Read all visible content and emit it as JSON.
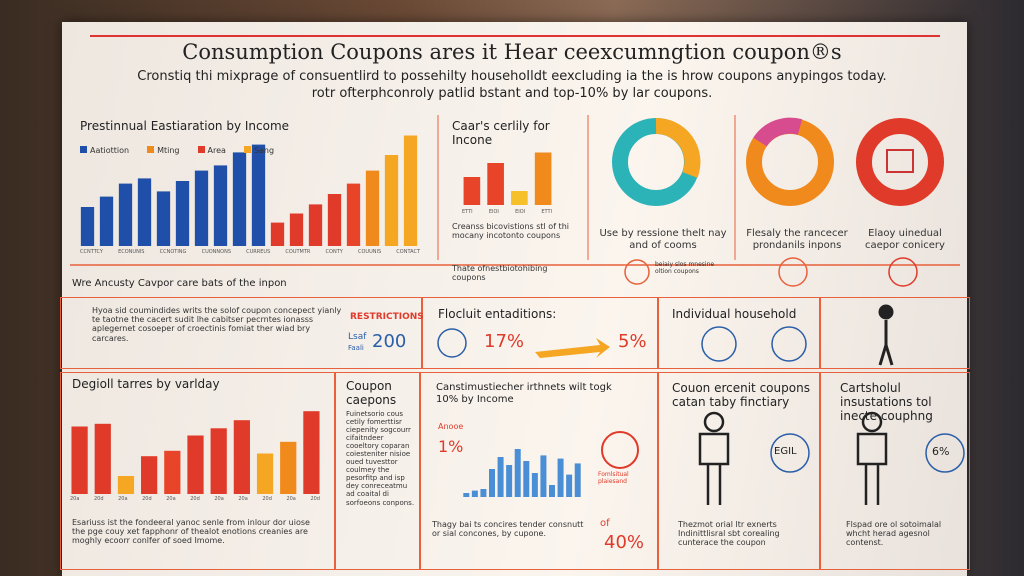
{
  "header": {
    "title": "Consumption Coupons ares it Hear ceexcumngtion coupon®s",
    "subtitle": [
      "Cronstiq thi mixprage of consuentlird to possehilty househoIldt eexcluding ia the is hrow coupons anypingos today.",
      "rotr ofterphconroly patlid bstant and top-10% by lar coupons."
    ]
  },
  "top": {
    "income": {
      "title": "Prestinnual Eastiaration by Income",
      "legend": [
        {
          "name": "Aatiottion",
          "color": "#1f4fa8"
        },
        {
          "name": "Mting",
          "color": "#f08a1c"
        },
        {
          "name": "Area",
          "color": "#e03a2a"
        },
        {
          "name": "Sang",
          "color": "#f5a623"
        }
      ],
      "values": [
        30,
        38,
        48,
        52,
        42,
        50,
        58,
        62,
        72,
        78,
        18,
        25,
        32,
        40,
        48,
        58,
        70,
        85
      ],
      "colors": [
        "#1f4fa8",
        "#1f4fa8",
        "#1f4fa8",
        "#1f4fa8",
        "#1f4fa8",
        "#1f4fa8",
        "#1f4fa8",
        "#1f4fa8",
        "#1f4fa8",
        "#1f4fa8",
        "#e03a2a",
        "#e03a2a",
        "#e03a2a",
        "#e03a2a",
        "#e8442a",
        "#f08a1c",
        "#f5a623",
        "#f5a623"
      ],
      "categories": [
        "CCNTTCY",
        "ECONUNIS",
        "CCNOTING",
        "CUONNONS",
        "CURREUS",
        "COUTMTR",
        "CONTY",
        "COUUNIS",
        "CONTACT"
      ]
    },
    "certify": {
      "title": "Caar's cerlily for Incone",
      "values": [
        40,
        60,
        20,
        75
      ],
      "colors": [
        "#e8442a",
        "#e8442a",
        "#f5c02a",
        "#f08a1c"
      ],
      "categories": [
        "ETTI",
        "EIOI",
        "EIOI",
        "ETTI"
      ],
      "bullets": [
        "Creanss bicovistions stl of thi mocany incotonto coupons",
        "Thate ofnestbiotohibing coupons"
      ]
    },
    "donut1": {
      "caption": "Use by ressione thelt nay and of cooms",
      "note": "beiaiy slos mnesine oltion coupons"
    },
    "donut2": {
      "caption": "Flesaly the rancecer prondanils inpons"
    },
    "donut3": {
      "caption": "Elaoy uinedual caepor conicery"
    }
  },
  "middle": {
    "heading": "Wre Ancusty Cavpor care bats of the inpon",
    "text": "Hyoa sid coumindides writs the solof coupon concepect yianly te taotne the cacert sudit lhe cabitser pecrntes ionasss aplegernet cosoeper of croectinis fomiat ther wiad bry carcares.",
    "restrictions": "RESTRICTIONS",
    "leaf": "Lsaf",
    "faali": "Faali",
    "amount": "200",
    "entitlements": {
      "title": "Flocluit entaditions:",
      "a": "17%",
      "b": "5%"
    },
    "household": "Individual household"
  },
  "bottom": {
    "variday": {
      "title": "Degioll tarres by varlday",
      "values": [
        75,
        78,
        20,
        42,
        48,
        65,
        73,
        82,
        45,
        58,
        92
      ],
      "colors": [
        "#e03a2a",
        "#e03a2a",
        "#f5a623",
        "#e03a2a",
        "#e8442a",
        "#e03a2a",
        "#e03a2a",
        "#e03a2a",
        "#f5a623",
        "#f08a1c",
        "#e03a2a"
      ],
      "categories": [
        "20a",
        "20d",
        "20a",
        "20d",
        "20a",
        "20d",
        "20a",
        "20a",
        "20d",
        "20a",
        "20d"
      ],
      "text": "Esariuss ist the fondeeral yanoc senle from inlour dor uiose the pge couy xet fapphonr of thealot enotions creanies are moghly ecoorr conlfer of soed Imome."
    },
    "coupon": {
      "title": "Coupon caepons",
      "text": "Fuinetsorio cous cetily fomerttisr ciepenity sogcourr cifaitndeer cooeltory coparan coiesteniter nisioe oued tuvesttor coulmey the pesorfitp and isp dey conreceatmu ad coaital di sorfoeons conpons."
    },
    "income": {
      "title": "Canstimustiecher irthnets wilt togk 10% by Income",
      "label": "Anooe",
      "a": "1%",
      "values": [
        5,
        8,
        10,
        35,
        50,
        40,
        60,
        45,
        30,
        52,
        15,
        48,
        28,
        42
      ],
      "color": "#4a8fd6",
      "note": "Fomlsitual plaiesand",
      "of": "of",
      "b": "40%",
      "text": "Thagy bai ts concires tender consnutt or sial concones, by cupone."
    },
    "finctiary": {
      "title": "Couon ercenit coupons catan taby finctiary",
      "badge": "EGIL",
      "text": "Thezmot orial ltr exnerts Indinittlisral sbt corealing cunterace the coupon"
    },
    "illustrations": {
      "title": "Cartsholul insustations tol inecte couphng",
      "badge": "6%",
      "text": "Flspad ore ol sotoimalal whcht herad agesnol contenst."
    }
  }
}
